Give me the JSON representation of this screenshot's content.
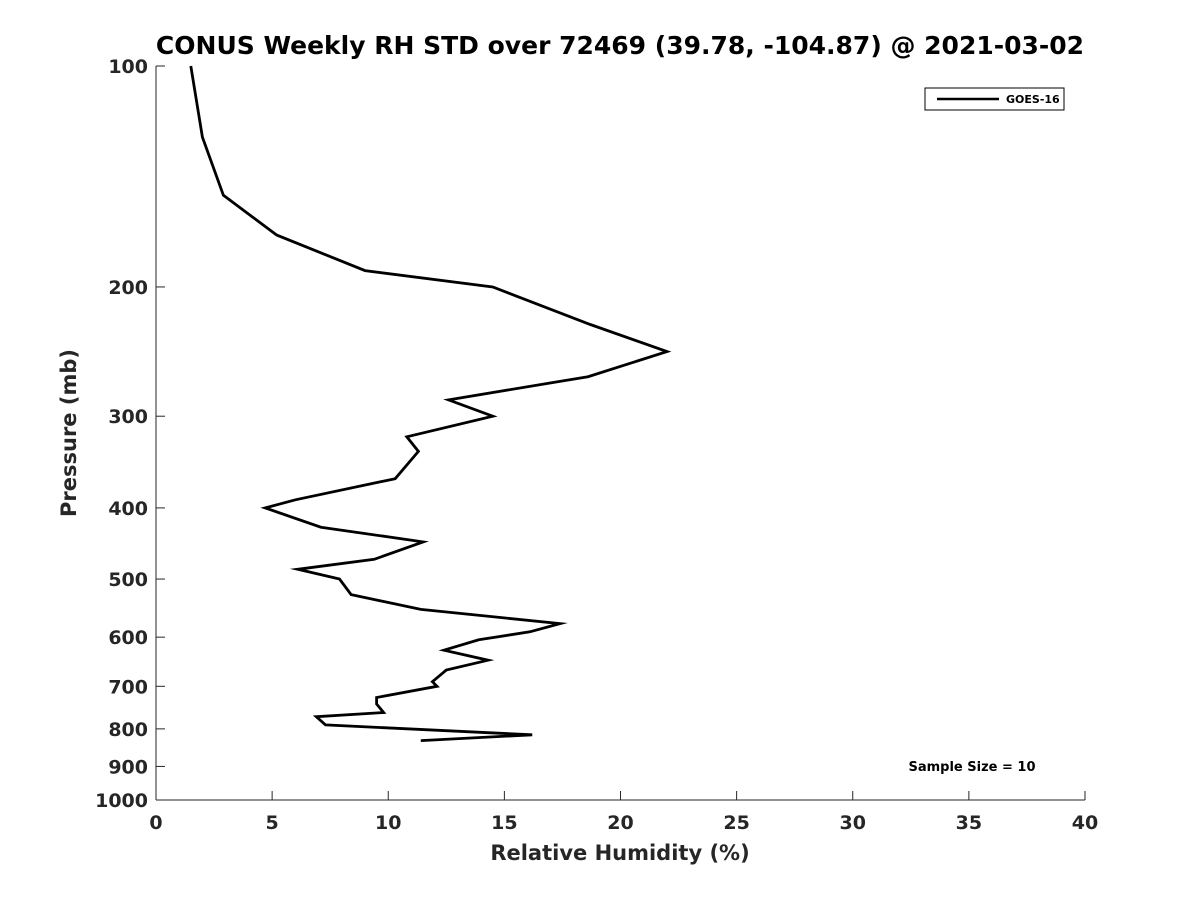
{
  "chart_data": {
    "type": "line",
    "title": "CONUS Weekly RH STD over 72469 (39.78, -104.87) @ 2021-03-02",
    "xlabel": "Relative Humidity (%)",
    "ylabel": "Pressure (mb)",
    "xlim": [
      0,
      40
    ],
    "ylim": [
      100,
      1000
    ],
    "y_scale": "log",
    "y_reversed": true,
    "x_ticks": [
      0,
      5,
      10,
      15,
      20,
      25,
      30,
      35,
      40
    ],
    "y_ticks": [
      100,
      200,
      300,
      400,
      500,
      600,
      700,
      800,
      900,
      1000
    ],
    "legend": {
      "position": "top-right",
      "entries": [
        "GOES-16"
      ]
    },
    "annotation": "Sample Size = 10",
    "series": [
      {
        "name": "GOES-16",
        "color": "#000000",
        "x": [
          1.5,
          2.0,
          2.9,
          5.2,
          9.0,
          14.5,
          18.7,
          22.0,
          18.6,
          12.6,
          14.5,
          10.8,
          11.3,
          10.3,
          6.0,
          4.7,
          7.1,
          11.5,
          9.4,
          6.1,
          7.9,
          8.4,
          11.4,
          17.4,
          16.1,
          13.9,
          12.4,
          14.3,
          12.5,
          11.9,
          12.1,
          9.5,
          9.5,
          9.8,
          6.9,
          7.3,
          16.2,
          11.4
        ],
        "y": [
          100,
          125,
          150,
          170,
          190,
          200,
          225,
          245,
          265,
          285,
          300,
          320,
          335,
          365,
          390,
          400,
          425,
          445,
          470,
          485,
          500,
          525,
          550,
          575,
          590,
          605,
          625,
          645,
          665,
          690,
          700,
          725,
          740,
          760,
          770,
          790,
          815,
          830
        ]
      }
    ]
  }
}
